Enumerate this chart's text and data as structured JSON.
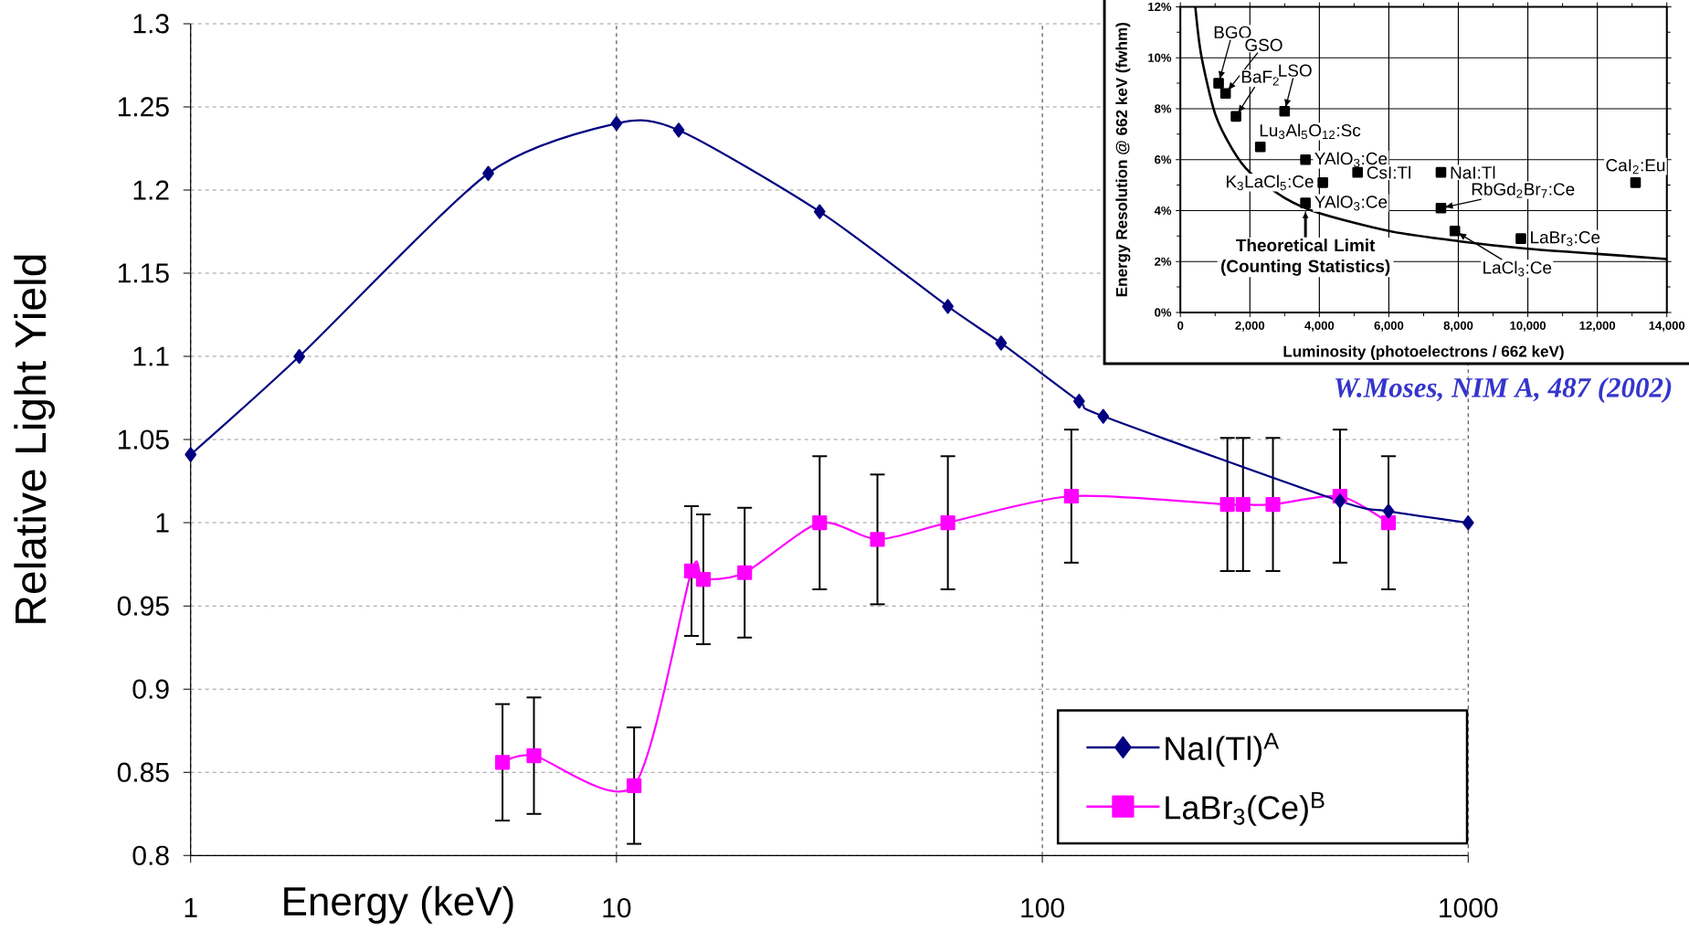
{
  "chart_data": [
    {
      "type": "line",
      "xlabel": "Energy (keV)",
      "ylabel": "Relative Light Yield",
      "log": "x",
      "grid": true,
      "legend": "bottom right",
      "xlim": [
        1,
        1000
      ],
      "ylim": [
        0.8,
        1.3
      ],
      "xticks": [
        1,
        10,
        100,
        1000
      ],
      "yticks": [
        0.8,
        0.85,
        0.9,
        0.95,
        1,
        1.05,
        1.1,
        1.15,
        1.2,
        1.25,
        1.3
      ],
      "series": [
        {
          "name": "NaI(Tl)$^{A}$",
          "color": "#000080",
          "marker": "diamond",
          "x": [
            1,
            1.8,
            5,
            10,
            14,
            30,
            60,
            80,
            122,
            139,
            500,
            650,
            1000
          ],
          "values": [
            1.041,
            1.1,
            1.21,
            1.24,
            1.236,
            1.187,
            1.13,
            1.108,
            1.073,
            1.064,
            1.013,
            1.007,
            1.0
          ]
        },
        {
          "name": "LaBr$_{3}$(Ce)$^{B}$",
          "color": "#ff00ff",
          "marker": "square",
          "x": [
            5.4,
            6.4,
            11,
            15,
            16,
            20,
            30,
            41,
            60,
            117,
            272,
            296,
            348,
            500,
            650
          ],
          "values": [
            0.856,
            0.86,
            0.842,
            0.971,
            0.966,
            0.97,
            1.0,
            0.99,
            1.0,
            1.016,
            1.011,
            1.011,
            1.011,
            1.016,
            1.0
          ],
          "errors": [
            0.035,
            0.035,
            0.035,
            0.039,
            0.039,
            0.039,
            0.04,
            0.039,
            0.04,
            0.04,
            0.04,
            0.04,
            0.04,
            0.04,
            0.04
          ]
        }
      ]
    },
    {
      "type": "scatter",
      "xlabel": "Luminosity (photoelectrons / 662 keV)",
      "ylabel": "Energy Resolution @ 662 keV (fwhm)",
      "grid": true,
      "xlim": [
        0,
        14000
      ],
      "ylim": [
        0,
        12
      ],
      "xticks": [
        0,
        {
          "value": 2000,
          "label": "2,000"
        },
        {
          "value": 4000,
          "label": "4,000"
        },
        {
          "value": 6000,
          "label": "6,000"
        },
        {
          "value": 8000,
          "label": "8,000"
        },
        {
          "value": 10000,
          "label": "10,000"
        },
        {
          "value": 12000,
          "label": "12,000"
        },
        {
          "value": 14000,
          "label": "14,000"
        }
      ],
      "yticks": [
        {
          "value": 0,
          "label": "0%"
        },
        {
          "value": 2,
          "label": "2%"
        },
        {
          "value": 4,
          "label": "4%"
        },
        {
          "value": 6,
          "label": "6%"
        },
        {
          "value": 8,
          "label": "8%"
        },
        {
          "value": 10,
          "label": "10%"
        },
        {
          "value": 12,
          "label": "12%"
        }
      ],
      "series": [
        {
          "color": "#000000",
          "marker": "square",
          "x": [
            1100,
            1300,
            1600,
            3000,
            2300,
            3600,
            3600,
            4100,
            5100,
            7500,
            7500,
            7900,
            9800,
            13100
          ],
          "values": [
            9.0,
            8.6,
            7.7,
            7.9,
            6.5,
            6.0,
            4.3,
            5.1,
            5.5,
            5.5,
            4.1,
            3.2,
            2.9,
            5.1
          ]
        },
        {
          "type": "line",
          "color": "#000000",
          "marker": "none",
          "x": [
            430,
            600,
            1000,
            1500,
            2000,
            3000,
            4000,
            6000,
            8000,
            10000,
            12000,
            14000
          ],
          "values": [
            12.0,
            10.1,
            7.8,
            6.4,
            5.5,
            4.5,
            3.9,
            3.2,
            2.8,
            2.5,
            2.3,
            2.1
          ]
        }
      ],
      "annotations": [
        {
          "text": "BGO",
          "x": 1100,
          "y": 9.0
        },
        {
          "text": "GSO",
          "x": 1300,
          "y": 8.6
        },
        {
          "text": "BaF$_{2}$",
          "x": 1600,
          "y": 7.7
        },
        {
          "text": "LSO",
          "x": 3000,
          "y": 7.9
        },
        {
          "text": "Lu$_{3}$Al$_{5}$O$_{12}$:Sc",
          "x": 2300,
          "y": 6.5
        },
        {
          "text": "YAlO$_{3}$:Ce",
          "x": 3600,
          "y": 6.0
        },
        {
          "text": "YAlO$_{3}$:Ce",
          "x": 3600,
          "y": 4.3
        },
        {
          "text": "K$_{3}$LaCl$_{5}$:Ce",
          "x": 4100,
          "y": 5.1
        },
        {
          "text": "CsI:Tl",
          "x": 5100,
          "y": 5.5
        },
        {
          "text": "NaI:Tl",
          "x": 7500,
          "y": 5.5
        },
        {
          "text": "RbGd$_{2}$Br$_{7}$:Ce",
          "x": 7500,
          "y": 4.1
        },
        {
          "text": "LaCl$_{3}$:Ce",
          "x": 7900,
          "y": 3.2
        },
        {
          "text": "LaBr$_{3}$:Ce",
          "x": 9800,
          "y": 2.9
        },
        {
          "text": "CaI$_{2}$:Eu",
          "x": 13100,
          "y": 5.1
        },
        {
          "text": "Theoretical Limit (Counting Statistics)",
          "x": 3600,
          "y": 4.1
        },
        "W.Moses, NIM A, 487 (2002)"
      ]
    }
  ]
}
